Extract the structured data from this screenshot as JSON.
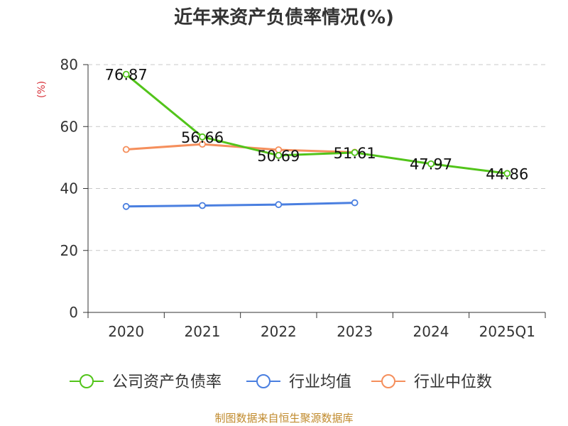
{
  "chart_data": {
    "type": "line",
    "title": "近年来资产负债率情况(%)",
    "ylabel": "(%)",
    "categories": [
      "2020",
      "2021",
      "2022",
      "2023",
      "2024",
      "2025Q1"
    ],
    "ylim": [
      0,
      80
    ],
    "yticks": [
      0,
      20,
      40,
      60,
      80
    ],
    "grid": true,
    "legend_position": "bottom",
    "series": [
      {
        "name": "公司资产负债率",
        "color": "#52c41a",
        "values": [
          76.87,
          56.66,
          50.69,
          51.61,
          47.97,
          44.86
        ],
        "labels": [
          "76.87",
          "56.66",
          "50.69",
          "51.61",
          "47.97",
          "44.86"
        ]
      },
      {
        "name": "行业均值",
        "color": "#4a7fe0",
        "values": [
          34.2,
          34.5,
          34.8,
          35.4,
          null,
          null
        ]
      },
      {
        "name": "行业中位数",
        "color": "#f58f5c",
        "values": [
          52.6,
          54.3,
          52.5,
          51.7,
          null,
          null
        ]
      }
    ]
  },
  "footer": {
    "source": "制图数据来自恒生聚源数据库"
  }
}
